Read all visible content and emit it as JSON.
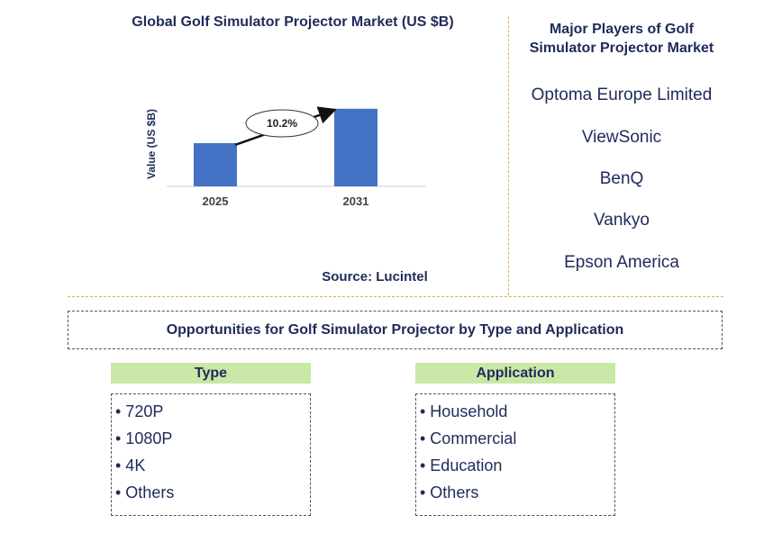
{
  "chart_data": {
    "type": "bar",
    "title": "Global Golf Simulator Projector Market (US $B)",
    "ylabel": "Value (US $B)",
    "xlabel": "",
    "categories": [
      "2025",
      "2031"
    ],
    "values": [
      0.34,
      0.61
    ],
    "ylim": [
      0,
      0.75
    ],
    "bar_color": "#4472c4",
    "annotation": {
      "text": "10.2%",
      "from": "2025",
      "to": "2031"
    },
    "grid": false,
    "source": "Source: Lucintel"
  },
  "players": {
    "title": "Major Players of Golf Simulator Projector Market",
    "items": [
      "Optoma Europe Limited",
      "ViewSonic",
      "BenQ",
      "Vankyo",
      "Epson America"
    ]
  },
  "opportunities": {
    "title": "Opportunities for Golf Simulator Projector by Type and Application",
    "type": {
      "header": "Type",
      "items": [
        "• 720P",
        "• 1080P",
        "• 4K",
        "• Others"
      ]
    },
    "application": {
      "header": "Application",
      "items": [
        "• Household",
        "• Commercial",
        "• Education",
        "• Others"
      ]
    }
  }
}
